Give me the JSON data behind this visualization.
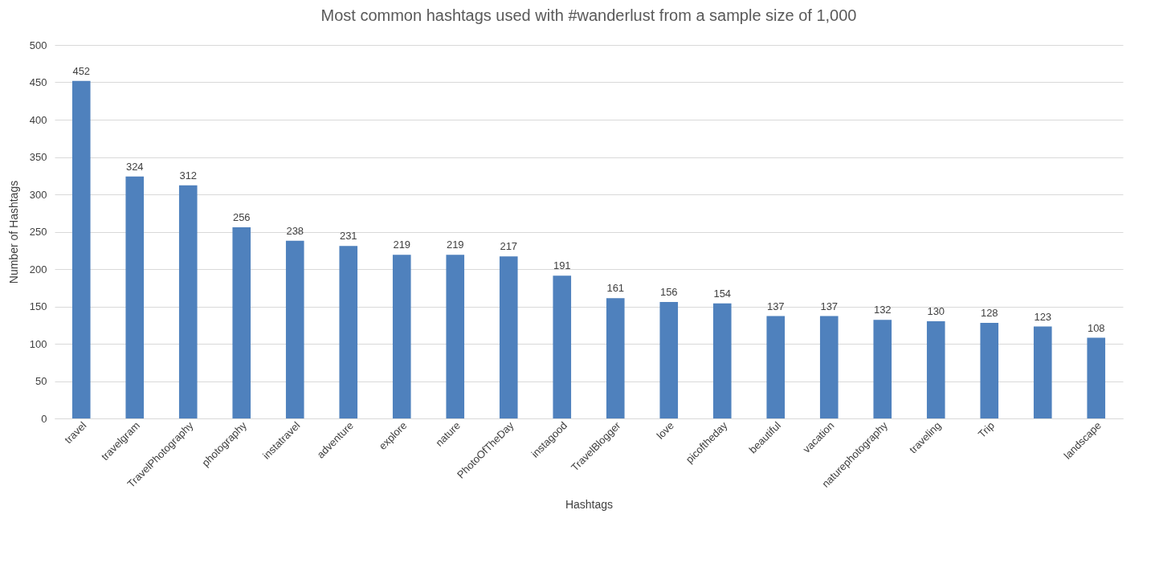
{
  "chart_data": {
    "type": "bar",
    "title": "Most common hashtags used with #wanderlust from a sample size of 1,000",
    "xlabel": "Hashtags",
    "ylabel": "Number of Hashtags",
    "categories": [
      "travel",
      "travelgram",
      "TravelPhotography",
      "photography",
      "instatravel",
      "adventure",
      "explore",
      "nature",
      "PhotoOfTheDay",
      "instagood",
      "TravelBlogger",
      "love",
      "picoftheday",
      "beautiful",
      "vacation",
      "naturephotography",
      "traveling",
      "Trip",
      null,
      "landscape"
    ],
    "values": [
      452,
      324,
      312,
      256,
      238,
      231,
      219,
      219,
      217,
      191,
      161,
      156,
      154,
      137,
      137,
      132,
      130,
      128,
      123,
      108
    ],
    "color": "#4f81bd",
    "ylim": [
      0,
      500
    ],
    "yticks": [
      0,
      50,
      100,
      150,
      200,
      250,
      300,
      350,
      400,
      450,
      500
    ],
    "grid": "y",
    "data_labels": true
  }
}
